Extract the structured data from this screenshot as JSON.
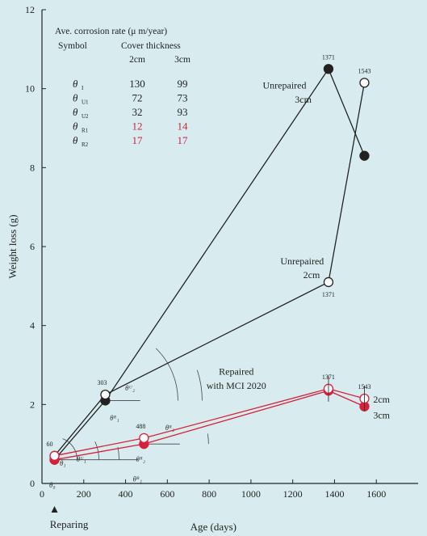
{
  "chart_data": {
    "type": "line",
    "xlabel": "Age (days)",
    "ylabel": "Weight loss (g)",
    "xlim": [
      0,
      1800
    ],
    "ylim": [
      0,
      12
    ],
    "x_ticks": [
      0,
      200,
      400,
      600,
      800,
      1000,
      1200,
      1400,
      1600
    ],
    "y_ticks": [
      0,
      2,
      4,
      6,
      8,
      10,
      12
    ],
    "grid": false,
    "series": [
      {
        "name": "Unrepaired 3cm",
        "color": "#222222",
        "marker": "filled",
        "points": [
          [
            60,
            0.6
          ],
          [
            303,
            2.1
          ],
          [
            1371,
            10.5
          ],
          [
            1543,
            8.3
          ]
        ]
      },
      {
        "name": "Unrepaired 2cm",
        "color": "#222222",
        "marker": "open",
        "points": [
          [
            60,
            0.7
          ],
          [
            303,
            2.25
          ],
          [
            1371,
            5.1
          ],
          [
            1543,
            10.15
          ]
        ]
      },
      {
        "name": "Repaired with MCI 2020 3cm",
        "color": "#d6213c",
        "marker": "filled",
        "points": [
          [
            60,
            0.6
          ],
          [
            488,
            1.0
          ],
          [
            1371,
            2.35
          ],
          [
            1543,
            1.95
          ]
        ]
      },
      {
        "name": "Repaired with MCI 2020 2cm",
        "color": "#d6213c",
        "marker": "open",
        "points": [
          [
            60,
            0.7
          ],
          [
            488,
            1.15
          ],
          [
            1371,
            2.4
          ],
          [
            1543,
            2.15
          ]
        ]
      }
    ],
    "point_labels": [
      {
        "text": "60",
        "x": 60,
        "y": 0.7
      },
      {
        "text": "303",
        "x": 303,
        "y": 2.25
      },
      {
        "text": "488",
        "x": 488,
        "y": 1.15
      },
      {
        "text": "1371",
        "x": 1371,
        "y": 10.5
      },
      {
        "text": "1543",
        "x": 1543,
        "y": 10.15
      },
      {
        "text": "1371",
        "x": 1371,
        "y": 5.1
      },
      {
        "text": "1371",
        "x": 1371,
        "y": 2.4
      },
      {
        "text": "1543",
        "x": 1543,
        "y": 2.15
      }
    ],
    "annotations": {
      "unrepaired_3cm": [
        "Unrepaired",
        "3cm"
      ],
      "unrepaired_2cm": [
        "Unrepaired",
        "2cm"
      ],
      "repaired": [
        "Repaired",
        "with MCI 2020"
      ],
      "label_2cm": "2cm",
      "label_3cm": "3cm",
      "reparing": "Reparing"
    },
    "angle_labels": [
      "θ₀",
      "θ₁",
      "θᵁ₁",
      "θᵁ₂",
      "θᴿ₁",
      "θᴿ₂",
      "θᴿ₁",
      "θᴿ₂"
    ],
    "rate_table": {
      "title": "Ave. corrosion rate (μ m/year)",
      "symbol_header": "Symbol",
      "cover_header": "Cover thickness",
      "col_2cm": "2cm",
      "col_3cm": "3cm",
      "rows": [
        {
          "symbol": "θ",
          "sub": "I",
          "v2": "130",
          "v3": "99",
          "red": false
        },
        {
          "symbol": "θ",
          "sub": "U1",
          "v2": "72",
          "v3": "73",
          "red": false
        },
        {
          "symbol": "θ",
          "sub": "U2",
          "v2": "32",
          "v3": "93",
          "red": false
        },
        {
          "symbol": "θ",
          "sub": "R1",
          "v2": "12",
          "v3": "14",
          "red": true
        },
        {
          "symbol": "θ",
          "sub": "R2",
          "v2": "17",
          "v3": "17",
          "red": true
        }
      ]
    }
  }
}
